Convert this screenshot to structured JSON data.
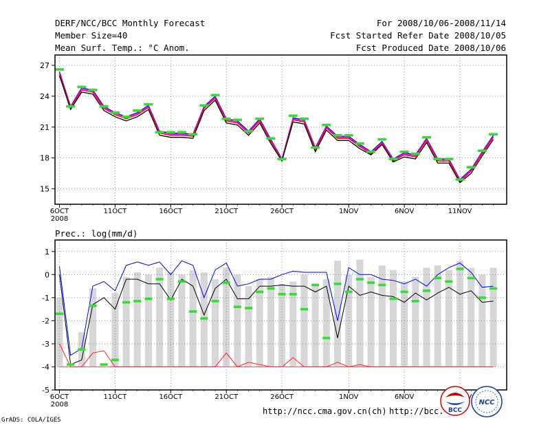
{
  "header": {
    "title": "DERF/NCC/BCC Monthly Forecast",
    "member": "Member Size=40",
    "variable": "Mean Surf. Temp.: °C Anom.",
    "period": "For 2008/10/06-2008/11/14",
    "refer_date": "Fcst Started Refer Date 2008/10/05",
    "produced_date": "Fcst Produced Date 2008/10/06"
  },
  "footer": {
    "grads": "GrADS: COLA/IGES",
    "url1": "http://ncc.cma.gov.cn(ch)",
    "url2": "http://bcc."
  },
  "logos": {
    "bcc": "BCC",
    "ncc": "NCC"
  },
  "colors": {
    "blue": "#0000ff",
    "black": "#000000",
    "red": "#ff0000",
    "magenta": "#ff00ff",
    "green": "#33dd33",
    "gray": "#d7d7da",
    "pink": "#ff4444"
  },
  "chart_data": [
    {
      "type": "line",
      "title": "Mean Surf. Temp.: °C Anom.",
      "ylim": [
        13.5,
        28
      ],
      "yticks": [
        15,
        18,
        21,
        24,
        27
      ],
      "x_day_start": 0,
      "x_day_end": 39,
      "xlim": [
        -0.4,
        40.2
      ],
      "xticks": [
        {
          "day": 0,
          "label": "6OCT",
          "sub": "2008"
        },
        {
          "day": 5,
          "label": "11OCT"
        },
        {
          "day": 10,
          "label": "16OCT"
        },
        {
          "day": 15,
          "label": "21OCT"
        },
        {
          "day": 20,
          "label": "26OCT"
        },
        {
          "day": 26,
          "label": "1NOV"
        },
        {
          "day": 31,
          "label": "6NOV"
        },
        {
          "day": 36,
          "label": "11NOV"
        }
      ],
      "series": [
        {
          "name": "ensemble-upper",
          "color": "#0000ff",
          "values": [
            26.4,
            23.0,
            24.8,
            24.6,
            23.0,
            22.4,
            22.0,
            22.4,
            23.1,
            20.6,
            20.4,
            20.4,
            20.3,
            23.0,
            24.0,
            21.8,
            21.6,
            20.6,
            21.8,
            19.8,
            17.9,
            21.9,
            21.7,
            19.0,
            21.1,
            20.1,
            20.1,
            19.3,
            18.6,
            19.6,
            17.9,
            18.5,
            18.3,
            19.9,
            17.9,
            17.9,
            15.9,
            16.9,
            18.6,
            20.2
          ]
        },
        {
          "name": "ensemble-mid-magenta",
          "color": "#ff00ff",
          "values": [
            26.3,
            22.9,
            24.7,
            24.5,
            22.9,
            22.3,
            21.9,
            22.3,
            23.0,
            20.5,
            20.3,
            20.3,
            20.2,
            22.9,
            23.9,
            21.7,
            21.5,
            20.5,
            21.7,
            19.7,
            17.8,
            21.8,
            21.6,
            18.9,
            21.0,
            20.0,
            20.0,
            19.2,
            18.5,
            19.5,
            17.8,
            18.4,
            18.2,
            19.8,
            17.8,
            17.8,
            15.8,
            16.8,
            18.5,
            20.1
          ]
        },
        {
          "name": "ensemble-mid-red",
          "color": "#ff0000",
          "values": [
            26.2,
            22.85,
            24.6,
            24.4,
            22.8,
            22.2,
            21.8,
            22.2,
            22.9,
            20.4,
            20.2,
            20.2,
            20.1,
            22.8,
            23.8,
            21.6,
            21.4,
            20.4,
            21.6,
            19.6,
            17.75,
            21.7,
            21.5,
            18.8,
            20.9,
            19.9,
            19.9,
            19.1,
            18.4,
            19.4,
            17.7,
            18.3,
            18.1,
            19.7,
            17.7,
            17.7,
            15.7,
            16.7,
            18.4,
            20.0
          ]
        },
        {
          "name": "ensemble-lower",
          "color": "#000000",
          "values": [
            26.0,
            22.7,
            24.4,
            24.2,
            22.6,
            22.0,
            21.6,
            22.0,
            22.7,
            20.2,
            20.0,
            20.0,
            19.9,
            22.6,
            23.6,
            21.4,
            21.2,
            20.2,
            21.4,
            19.4,
            17.7,
            21.5,
            21.3,
            18.6,
            20.7,
            19.7,
            19.7,
            18.9,
            18.3,
            19.3,
            17.6,
            18.1,
            17.9,
            19.5,
            17.5,
            17.5,
            15.6,
            16.5,
            18.2,
            19.8
          ]
        }
      ],
      "markers": {
        "name": "observed-green",
        "color": "#33dd33",
        "values": [
          26.6,
          23.0,
          24.9,
          24.6,
          23.0,
          22.4,
          22.0,
          22.6,
          23.2,
          20.5,
          20.5,
          20.5,
          20.3,
          23.1,
          24.1,
          21.8,
          21.7,
          20.6,
          21.8,
          19.9,
          17.9,
          22.1,
          21.8,
          19.0,
          21.2,
          20.2,
          20.2,
          19.4,
          18.6,
          19.8,
          17.9,
          18.6,
          18.4,
          20.0,
          17.9,
          17.9,
          15.9,
          17.1,
          18.7,
          20.3
        ]
      }
    },
    {
      "type": "bar",
      "title": "Prec.: log(mm/d)",
      "ylim": [
        -5,
        1.5
      ],
      "yticks": [
        -5,
        -4,
        -3,
        -2,
        -1,
        0,
        1
      ],
      "xlim": [
        -0.4,
        40.2
      ],
      "xticks": [
        {
          "day": 0,
          "label": "6OCT",
          "sub": "2008"
        },
        {
          "day": 5,
          "label": "11OCT"
        },
        {
          "day": 10,
          "label": "16OCT"
        },
        {
          "day": 15,
          "label": "21OCT"
        },
        {
          "day": 20,
          "label": "26OCT"
        },
        {
          "day": 26,
          "label": "1NOV"
        },
        {
          "day": 31,
          "label": "6NOV"
        },
        {
          "day": 36,
          "label": "11NOV"
        }
      ],
      "bar_baseline": -4,
      "bars_gray": [
        -1.0,
        -4.0,
        -2.5,
        -0.6,
        -4.0,
        -0.8,
        -0.1,
        0.1,
        0.0,
        0.3,
        0.1,
        0.0,
        0.2,
        0.1,
        -0.2,
        0.3,
        0.0,
        -0.5,
        -0.2,
        -0.1,
        -0.4,
        -0.3,
        0.0,
        -0.5,
        -0.2,
        0.6,
        0.0,
        0.65,
        -0.1,
        0.4,
        0.2,
        -0.3,
        -0.1,
        0.3,
        0.4,
        0.2,
        0.6,
        0.3,
        0.0,
        0.3
      ],
      "series": [
        {
          "name": "upper-blue",
          "color": "#0000ff",
          "values": [
            0.35,
            -3.5,
            -3.2,
            -0.5,
            -0.3,
            -0.7,
            0.4,
            0.55,
            0.4,
            0.55,
            0.0,
            0.6,
            0.4,
            -1.0,
            0.2,
            0.5,
            -0.5,
            -0.4,
            -0.2,
            -0.2,
            0.0,
            0.15,
            0.1,
            0.1,
            0.1,
            -2.0,
            0.3,
            0.0,
            0.0,
            -0.2,
            -0.25,
            -0.4,
            -0.2,
            -0.5,
            0.0,
            0.3,
            0.5,
            0.1,
            -0.55,
            -0.5
          ]
        },
        {
          "name": "mean-black",
          "color": "#000000",
          "values": [
            0.0,
            -3.9,
            -3.7,
            -1.3,
            -1.0,
            -1.5,
            -0.2,
            -0.2,
            -0.4,
            -0.4,
            -1.1,
            -0.2,
            -0.5,
            -1.75,
            -0.6,
            -0.2,
            -1.05,
            -1.05,
            -0.5,
            -0.5,
            -0.45,
            -0.5,
            -0.5,
            -0.75,
            -0.5,
            -2.75,
            -0.5,
            -0.9,
            -0.75,
            -0.9,
            -0.95,
            -1.2,
            -0.8,
            -1.1,
            -0.8,
            -0.55,
            -0.85,
            -0.7,
            -1.2,
            -1.15
          ]
        },
        {
          "name": "lower-red",
          "color": "#ff2222",
          "values": [
            -3.0,
            -4.0,
            -4.0,
            -3.4,
            -3.3,
            -4.0,
            -4.0,
            -4.0,
            -4.0,
            -4.0,
            -4.0,
            -4.0,
            -4.0,
            -4.0,
            -4.0,
            -3.4,
            -4.0,
            -3.8,
            -3.9,
            -4.0,
            -4.0,
            -3.6,
            -4.0,
            -4.0,
            -4.0,
            -3.8,
            -4.0,
            -3.9,
            -4.0,
            -4.0,
            -4.0,
            -4.0,
            -4.0,
            -4.0,
            -4.0,
            -4.0,
            -4.0,
            -4.0,
            -4.0,
            -4.0
          ]
        }
      ],
      "markers": {
        "name": "observed-green",
        "color": "#33dd33",
        "values": [
          -1.7,
          -3.9,
          -3.25,
          -1.35,
          -3.9,
          -3.7,
          -1.2,
          -1.15,
          -1.05,
          -0.2,
          -1.05,
          -0.3,
          -1.6,
          -1.9,
          -1.15,
          -0.35,
          -1.4,
          -1.45,
          -0.75,
          -0.6,
          -0.85,
          -0.85,
          -1.5,
          -0.45,
          -2.75,
          -0.4,
          -0.75,
          -0.2,
          -0.35,
          -0.45,
          -1.05,
          -0.75,
          -1.15,
          -0.7,
          -0.15,
          -0.3,
          0.25,
          -0.15,
          -1.0,
          -0.6
        ]
      }
    }
  ]
}
